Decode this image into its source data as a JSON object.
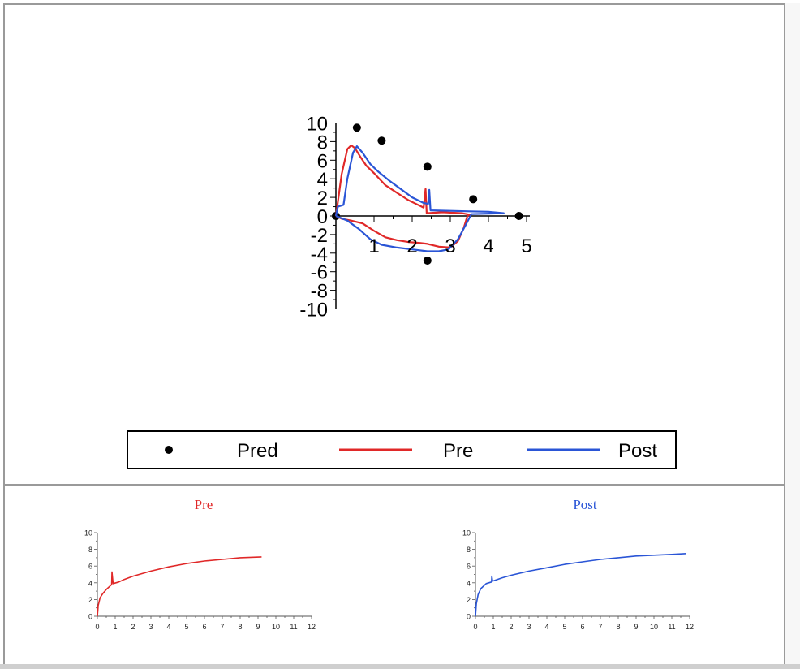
{
  "legend": {
    "items": [
      {
        "label": "Pred",
        "marker": "dot",
        "color": "#000000"
      },
      {
        "label": "Pre",
        "marker": "line",
        "color": "#e02828"
      },
      {
        "label": "Post",
        "marker": "line",
        "color": "#2a55d6"
      }
    ]
  },
  "colors": {
    "pred": "#000000",
    "pre": "#e02828",
    "post": "#2a55d6",
    "frame": "#9a9a9a"
  },
  "chart_data": [
    {
      "type": "line",
      "title": "",
      "xlabel": "",
      "ylabel": "",
      "xlim": [
        0,
        5
      ],
      "ylim": [
        -10,
        10
      ],
      "x_ticks": [
        1,
        2,
        3,
        4,
        5
      ],
      "y_ticks": [
        10,
        8,
        6,
        4,
        2,
        0,
        -2,
        -4,
        -6,
        -8,
        -10
      ],
      "grid": false,
      "legend_position": "bottom",
      "series": [
        {
          "name": "Pred",
          "style": "points",
          "points": [
            [
              0.55,
              9.5
            ],
            [
              1.2,
              8.1
            ],
            [
              2.4,
              5.3
            ],
            [
              3.6,
              1.8
            ],
            [
              4.8,
              0.0
            ],
            [
              0.0,
              0.0
            ],
            [
              2.4,
              -4.8
            ]
          ]
        },
        {
          "name": "Pre",
          "style": "line",
          "points": [
            [
              0.0,
              0.0
            ],
            [
              0.05,
              1.5
            ],
            [
              0.15,
              4.5
            ],
            [
              0.3,
              7.2
            ],
            [
              0.4,
              7.6
            ],
            [
              0.5,
              7.3
            ],
            [
              0.65,
              6.3
            ],
            [
              0.8,
              5.4
            ],
            [
              1.0,
              4.6
            ],
            [
              1.3,
              3.3
            ],
            [
              1.6,
              2.5
            ],
            [
              1.9,
              1.7
            ],
            [
              2.2,
              1.1
            ],
            [
              2.3,
              0.9
            ],
            [
              2.35,
              2.9
            ],
            [
              2.38,
              0.3
            ],
            [
              2.8,
              0.4
            ],
            [
              3.3,
              0.3
            ],
            [
              3.5,
              0.15
            ],
            [
              3.45,
              0.0
            ],
            [
              3.35,
              -1.3
            ],
            [
              3.2,
              -2.7
            ],
            [
              3.0,
              -3.4
            ],
            [
              2.7,
              -3.3
            ],
            [
              2.4,
              -3.0
            ],
            [
              2.2,
              -2.9
            ],
            [
              1.9,
              -2.8
            ],
            [
              1.6,
              -2.6
            ],
            [
              1.3,
              -2.3
            ],
            [
              1.0,
              -1.6
            ],
            [
              0.7,
              -0.8
            ],
            [
              0.4,
              -0.5
            ],
            [
              0.15,
              -0.3
            ],
            [
              0.0,
              0.0
            ]
          ]
        },
        {
          "name": "Post",
          "style": "line",
          "points": [
            [
              0.0,
              0.0
            ],
            [
              0.05,
              1.0
            ],
            [
              0.2,
              1.2
            ],
            [
              0.3,
              4.0
            ],
            [
              0.45,
              6.8
            ],
            [
              0.55,
              7.5
            ],
            [
              0.7,
              6.8
            ],
            [
              0.9,
              5.6
            ],
            [
              1.1,
              4.8
            ],
            [
              1.4,
              3.8
            ],
            [
              1.7,
              2.9
            ],
            [
              2.0,
              2.0
            ],
            [
              2.3,
              1.4
            ],
            [
              2.42,
              1.3
            ],
            [
              2.45,
              2.8
            ],
            [
              2.48,
              0.6
            ],
            [
              3.0,
              0.55
            ],
            [
              3.5,
              0.5
            ],
            [
              4.0,
              0.45
            ],
            [
              4.4,
              0.3
            ],
            [
              3.55,
              0.2
            ],
            [
              3.4,
              -1.0
            ],
            [
              3.2,
              -2.5
            ],
            [
              2.95,
              -3.6
            ],
            [
              2.7,
              -3.8
            ],
            [
              2.4,
              -3.8
            ],
            [
              2.0,
              -3.6
            ],
            [
              1.6,
              -3.4
            ],
            [
              1.2,
              -3.1
            ],
            [
              0.9,
              -2.5
            ],
            [
              0.6,
              -1.4
            ],
            [
              0.3,
              -0.5
            ],
            [
              0.0,
              0.0
            ]
          ]
        }
      ]
    },
    {
      "type": "line",
      "title": "Pre",
      "xlim": [
        0,
        12
      ],
      "ylim": [
        0,
        10
      ],
      "x_ticks": [
        0,
        1,
        2,
        3,
        4,
        5,
        6,
        7,
        8,
        9,
        10,
        11,
        12
      ],
      "y_ticks": [
        0,
        2,
        4,
        6,
        8,
        10
      ],
      "grid": false,
      "series": [
        {
          "points": [
            [
              0.0,
              0.0
            ],
            [
              0.05,
              1.3
            ],
            [
              0.15,
              2.2
            ],
            [
              0.3,
              2.7
            ],
            [
              0.5,
              3.2
            ],
            [
              0.8,
              3.8
            ],
            [
              0.82,
              5.3
            ],
            [
              0.88,
              3.9
            ],
            [
              1.2,
              4.1
            ],
            [
              1.5,
              4.4
            ],
            [
              2.0,
              4.8
            ],
            [
              3.0,
              5.4
            ],
            [
              4.0,
              5.9
            ],
            [
              5.0,
              6.3
            ],
            [
              6.0,
              6.6
            ],
            [
              7.0,
              6.8
            ],
            [
              8.0,
              7.0
            ],
            [
              9.2,
              7.1
            ]
          ]
        }
      ]
    },
    {
      "type": "line",
      "title": "Post",
      "xlim": [
        0,
        12
      ],
      "ylim": [
        0,
        10
      ],
      "x_ticks": [
        0,
        1,
        2,
        3,
        4,
        5,
        6,
        7,
        8,
        9,
        10,
        11,
        12
      ],
      "y_ticks": [
        0,
        2,
        4,
        6,
        8,
        10
      ],
      "grid": false,
      "series": [
        {
          "points": [
            [
              0.0,
              0.0
            ],
            [
              0.05,
              1.5
            ],
            [
              0.15,
              2.6
            ],
            [
              0.3,
              3.3
            ],
            [
              0.6,
              3.9
            ],
            [
              0.9,
              4.1
            ],
            [
              0.92,
              4.8
            ],
            [
              0.96,
              4.2
            ],
            [
              1.5,
              4.6
            ],
            [
              2.0,
              4.9
            ],
            [
              3.0,
              5.4
            ],
            [
              4.0,
              5.8
            ],
            [
              5.0,
              6.2
            ],
            [
              6.0,
              6.5
            ],
            [
              7.0,
              6.8
            ],
            [
              8.0,
              7.0
            ],
            [
              9.0,
              7.2
            ],
            [
              10.0,
              7.3
            ],
            [
              11.0,
              7.4
            ],
            [
              11.8,
              7.5
            ]
          ]
        }
      ]
    }
  ]
}
